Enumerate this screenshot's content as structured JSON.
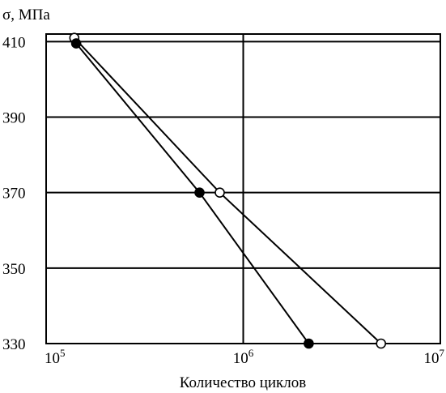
{
  "chart_data": {
    "type": "line",
    "xscale": "log",
    "xlim": [
      100000,
      10000000
    ],
    "ylim": [
      330,
      412
    ],
    "x_ticks": [
      {
        "value": 100000,
        "base": "10",
        "exp": "5"
      },
      {
        "value": 1000000,
        "base": "10",
        "exp": "6"
      },
      {
        "value": 10000000,
        "base": "10",
        "exp": "7"
      }
    ],
    "y_ticks": [
      410,
      390,
      370,
      350,
      330
    ],
    "grid": true,
    "ylabel": "σ, МПа",
    "xlabel": "Количество циклов",
    "series": [
      {
        "marker": "open-circle",
        "color": "#000000",
        "points": [
          {
            "x": 139000,
            "y": 411
          },
          {
            "x": 760000,
            "y": 370
          },
          {
            "x": 5000000,
            "y": 330
          }
        ]
      },
      {
        "marker": "filled-circle",
        "color": "#000000",
        "points": [
          {
            "x": 142000,
            "y": 409.5
          },
          {
            "x": 600000,
            "y": 370
          },
          {
            "x": 2150000,
            "y": 330
          }
        ]
      }
    ]
  }
}
